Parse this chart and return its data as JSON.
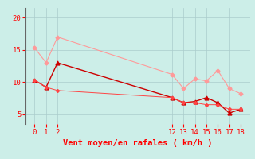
{
  "background_color": "#cceee8",
  "grid_color": "#aacccc",
  "xlabel": "Vent moyen/en rafales ( km/h )",
  "xlabel_color": "#ff0000",
  "xlabel_fontsize": 7.5,
  "yticks": [
    5,
    10,
    15,
    20
  ],
  "xticks": [
    0,
    1,
    2,
    12,
    13,
    14,
    15,
    16,
    17,
    18
  ],
  "tick_color": "#ff0000",
  "tick_fontsize": 6.5,
  "line1_x": [
    0,
    1,
    2,
    12,
    13,
    14,
    15,
    16,
    17,
    18
  ],
  "line1_y": [
    15.3,
    13.0,
    17.0,
    11.2,
    9.0,
    10.5,
    10.2,
    11.8,
    9.0,
    8.2
  ],
  "line1_color": "#ff9999",
  "line1_marker": "D",
  "line1_markersize": 2.5,
  "line1_linewidth": 0.8,
  "line2_x": [
    0,
    1,
    2,
    12,
    13,
    14,
    15,
    16,
    17,
    18
  ],
  "line2_y": [
    10.3,
    9.2,
    13.0,
    7.6,
    6.8,
    7.0,
    7.6,
    6.8,
    5.2,
    5.8
  ],
  "line2_color": "#cc0000",
  "line2_marker": "^",
  "line2_markersize": 3.5,
  "line2_linewidth": 1.0,
  "line3_x": [
    0,
    1,
    2,
    12,
    13,
    14,
    15,
    16,
    17,
    18
  ],
  "line3_y": [
    10.3,
    9.2,
    8.7,
    7.6,
    6.8,
    6.8,
    6.5,
    6.5,
    5.8,
    5.8
  ],
  "line3_color": "#ff4444",
  "line3_marker": "D",
  "line3_markersize": 2.0,
  "line3_linewidth": 0.7,
  "ylim": [
    3.5,
    21.5
  ],
  "xlim": [
    -0.8,
    18.8
  ],
  "figwidth": 3.2,
  "figheight": 2.0,
  "dpi": 100
}
